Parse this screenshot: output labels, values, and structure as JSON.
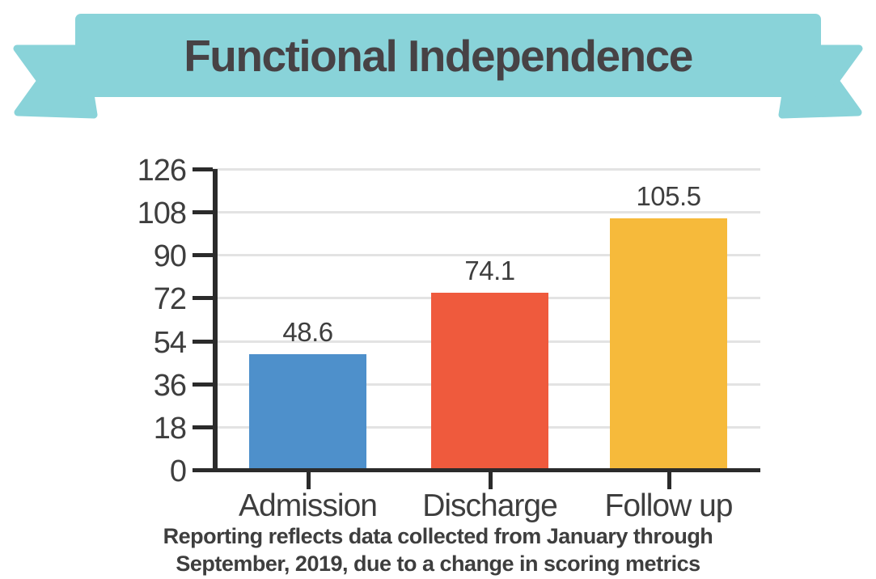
{
  "banner": {
    "title": "Functional Independence",
    "ribbon_color": "#89d3d9",
    "title_color": "#474245"
  },
  "chart_data": {
    "type": "bar",
    "title": "Functional Independence",
    "categories": [
      "Admission",
      "Discharge",
      "Follow up"
    ],
    "values": [
      48.6,
      74.1,
      105.5
    ],
    "value_labels": [
      "48.6",
      "74.1",
      "105.5"
    ],
    "bar_colors": [
      "#4e90cb",
      "#ef5a3d",
      "#f6ba3b"
    ],
    "xlabel": "",
    "ylabel": "",
    "ylim": [
      0,
      126
    ],
    "yticks": [
      126,
      108,
      90,
      72,
      54,
      36,
      18,
      0
    ],
    "grid": "horizontal gridlines on",
    "legend": "none",
    "axis_color": "#2b2b2b",
    "grid_color": "#e3e3e3",
    "label_color": "#3e3e3e"
  },
  "caption": {
    "line1": "Reporting reflects data collected from January through",
    "line2": "September, 2019, due to a change in scoring metrics"
  }
}
